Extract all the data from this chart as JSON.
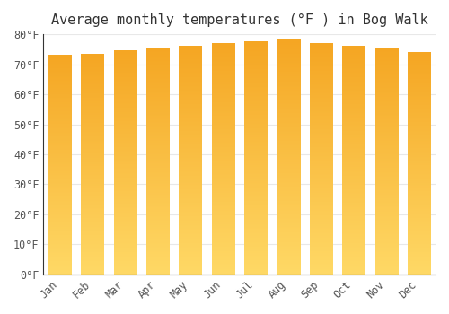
{
  "title": "Average monthly temperatures (°F ) in Bog Walk",
  "months": [
    "Jan",
    "Feb",
    "Mar",
    "Apr",
    "May",
    "Jun",
    "Jul",
    "Aug",
    "Sep",
    "Oct",
    "Nov",
    "Dec"
  ],
  "values": [
    73,
    73.5,
    74.5,
    75.5,
    76,
    77,
    77.5,
    78,
    77,
    76,
    75.5,
    74
  ],
  "ylim": [
    0,
    80
  ],
  "yticks": [
    0,
    10,
    20,
    30,
    40,
    50,
    60,
    70,
    80
  ],
  "ytick_labels": [
    "0°F",
    "10°F",
    "20°F",
    "30°F",
    "40°F",
    "50°F",
    "60°F",
    "70°F",
    "80°F"
  ],
  "background_color": "#ffffff",
  "grid_color": "#e8e8e8",
  "bar_color_bottom": "#FFD966",
  "bar_color_top": "#F5A623",
  "title_fontsize": 11,
  "tick_fontsize": 8.5,
  "spine_color": "#333333"
}
